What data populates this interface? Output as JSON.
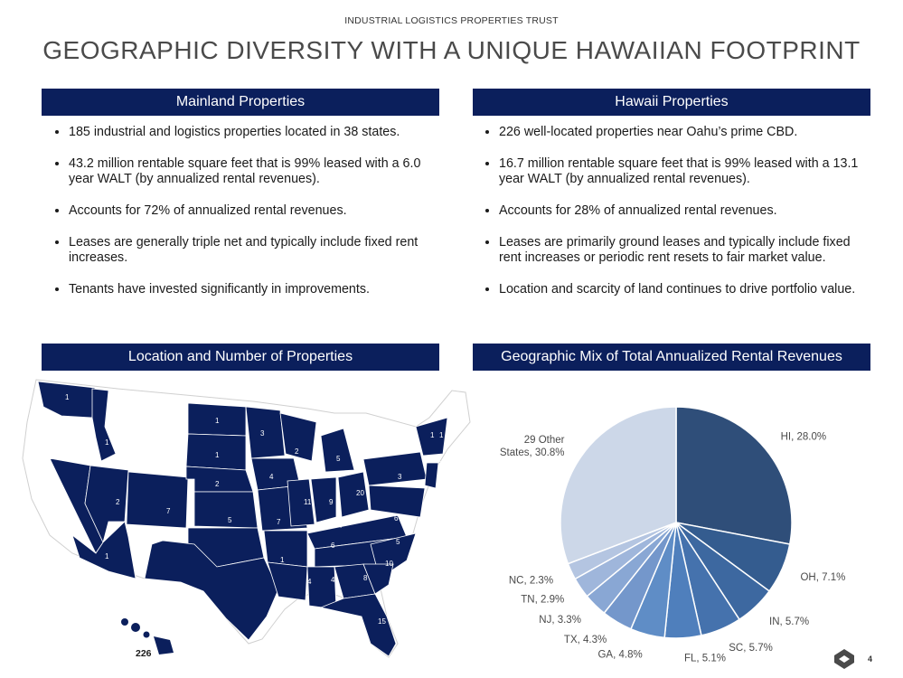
{
  "header": {
    "company": "INDUSTRIAL LOGISTICS PROPERTIES TRUST",
    "title": "GEOGRAPHIC DIVERSITY WITH A UNIQUE HAWAIIAN FOOTPRINT"
  },
  "mainland": {
    "heading": "Mainland Properties",
    "bullets": [
      "185 industrial and logistics properties located in 38 states.",
      "43.2 million rentable square feet that is 99% leased with a 6.0 year WALT (by annualized rental revenues).",
      "Accounts for 72% of annualized rental revenues.",
      "Leases are generally triple net and typically include fixed rent increases.",
      "Tenants have invested significantly in improvements."
    ]
  },
  "hawaii": {
    "heading": "Hawaii Properties",
    "bullets": [
      "226 well-located properties near Oahu’s prime CBD.",
      "16.7 million rentable square feet that is 99% leased with a 13.1 year WALT (by annualized rental revenues).",
      "Accounts for 28% of annualized rental revenues.",
      "Leases are primarily ground leases and typically include fixed rent increases or periodic rent resets to fair market value.",
      "Location and scarcity of land continues to drive portfolio value."
    ]
  },
  "map": {
    "heading": "Location and Number of Properties",
    "hawaii_count": "226",
    "state_counts": [
      "1",
      "1",
      "1",
      "3",
      "1",
      "2",
      "2",
      "4",
      "5",
      "2",
      "7",
      "5",
      "11",
      "9",
      "20",
      "3",
      "1",
      "1",
      "3",
      "6",
      "4",
      "7",
      "6",
      "5",
      "1",
      "1",
      "10",
      "4",
      "4",
      "8",
      "3",
      "15"
    ]
  },
  "pie": {
    "heading": "Geographic Mix of Total Annualized Rental Revenues"
  },
  "chart_data": {
    "type": "pie",
    "title": "Geographic Mix of Total Annualized Rental Revenues",
    "labels": [
      "HI",
      "OH",
      "IN",
      "SC",
      "FL",
      "GA",
      "TX",
      "NJ",
      "TN",
      "NC",
      "29 Other States"
    ],
    "values": [
      28.0,
      7.1,
      5.7,
      5.7,
      5.1,
      4.8,
      4.3,
      3.3,
      2.9,
      2.3,
      30.8
    ],
    "display_labels": [
      "HI, 28.0%",
      "OH, 7.1%",
      "IN, 5.7%",
      "SC, 5.7%",
      "FL, 5.1%",
      "GA, 4.8%",
      "TX, 4.3%",
      "NJ, 3.3%",
      "TN, 2.9%",
      "NC, 2.3%",
      "29 Other States, 30.8%"
    ],
    "colors": [
      "#2f4e79",
      "#345c8f",
      "#3d68a0",
      "#4572ad",
      "#4f7fbc",
      "#5f8dc6",
      "#7497cb",
      "#89a7d4",
      "#9fb6db",
      "#b4c5e1",
      "#ccd7e8"
    ]
  },
  "footer": {
    "page_number": "4"
  }
}
